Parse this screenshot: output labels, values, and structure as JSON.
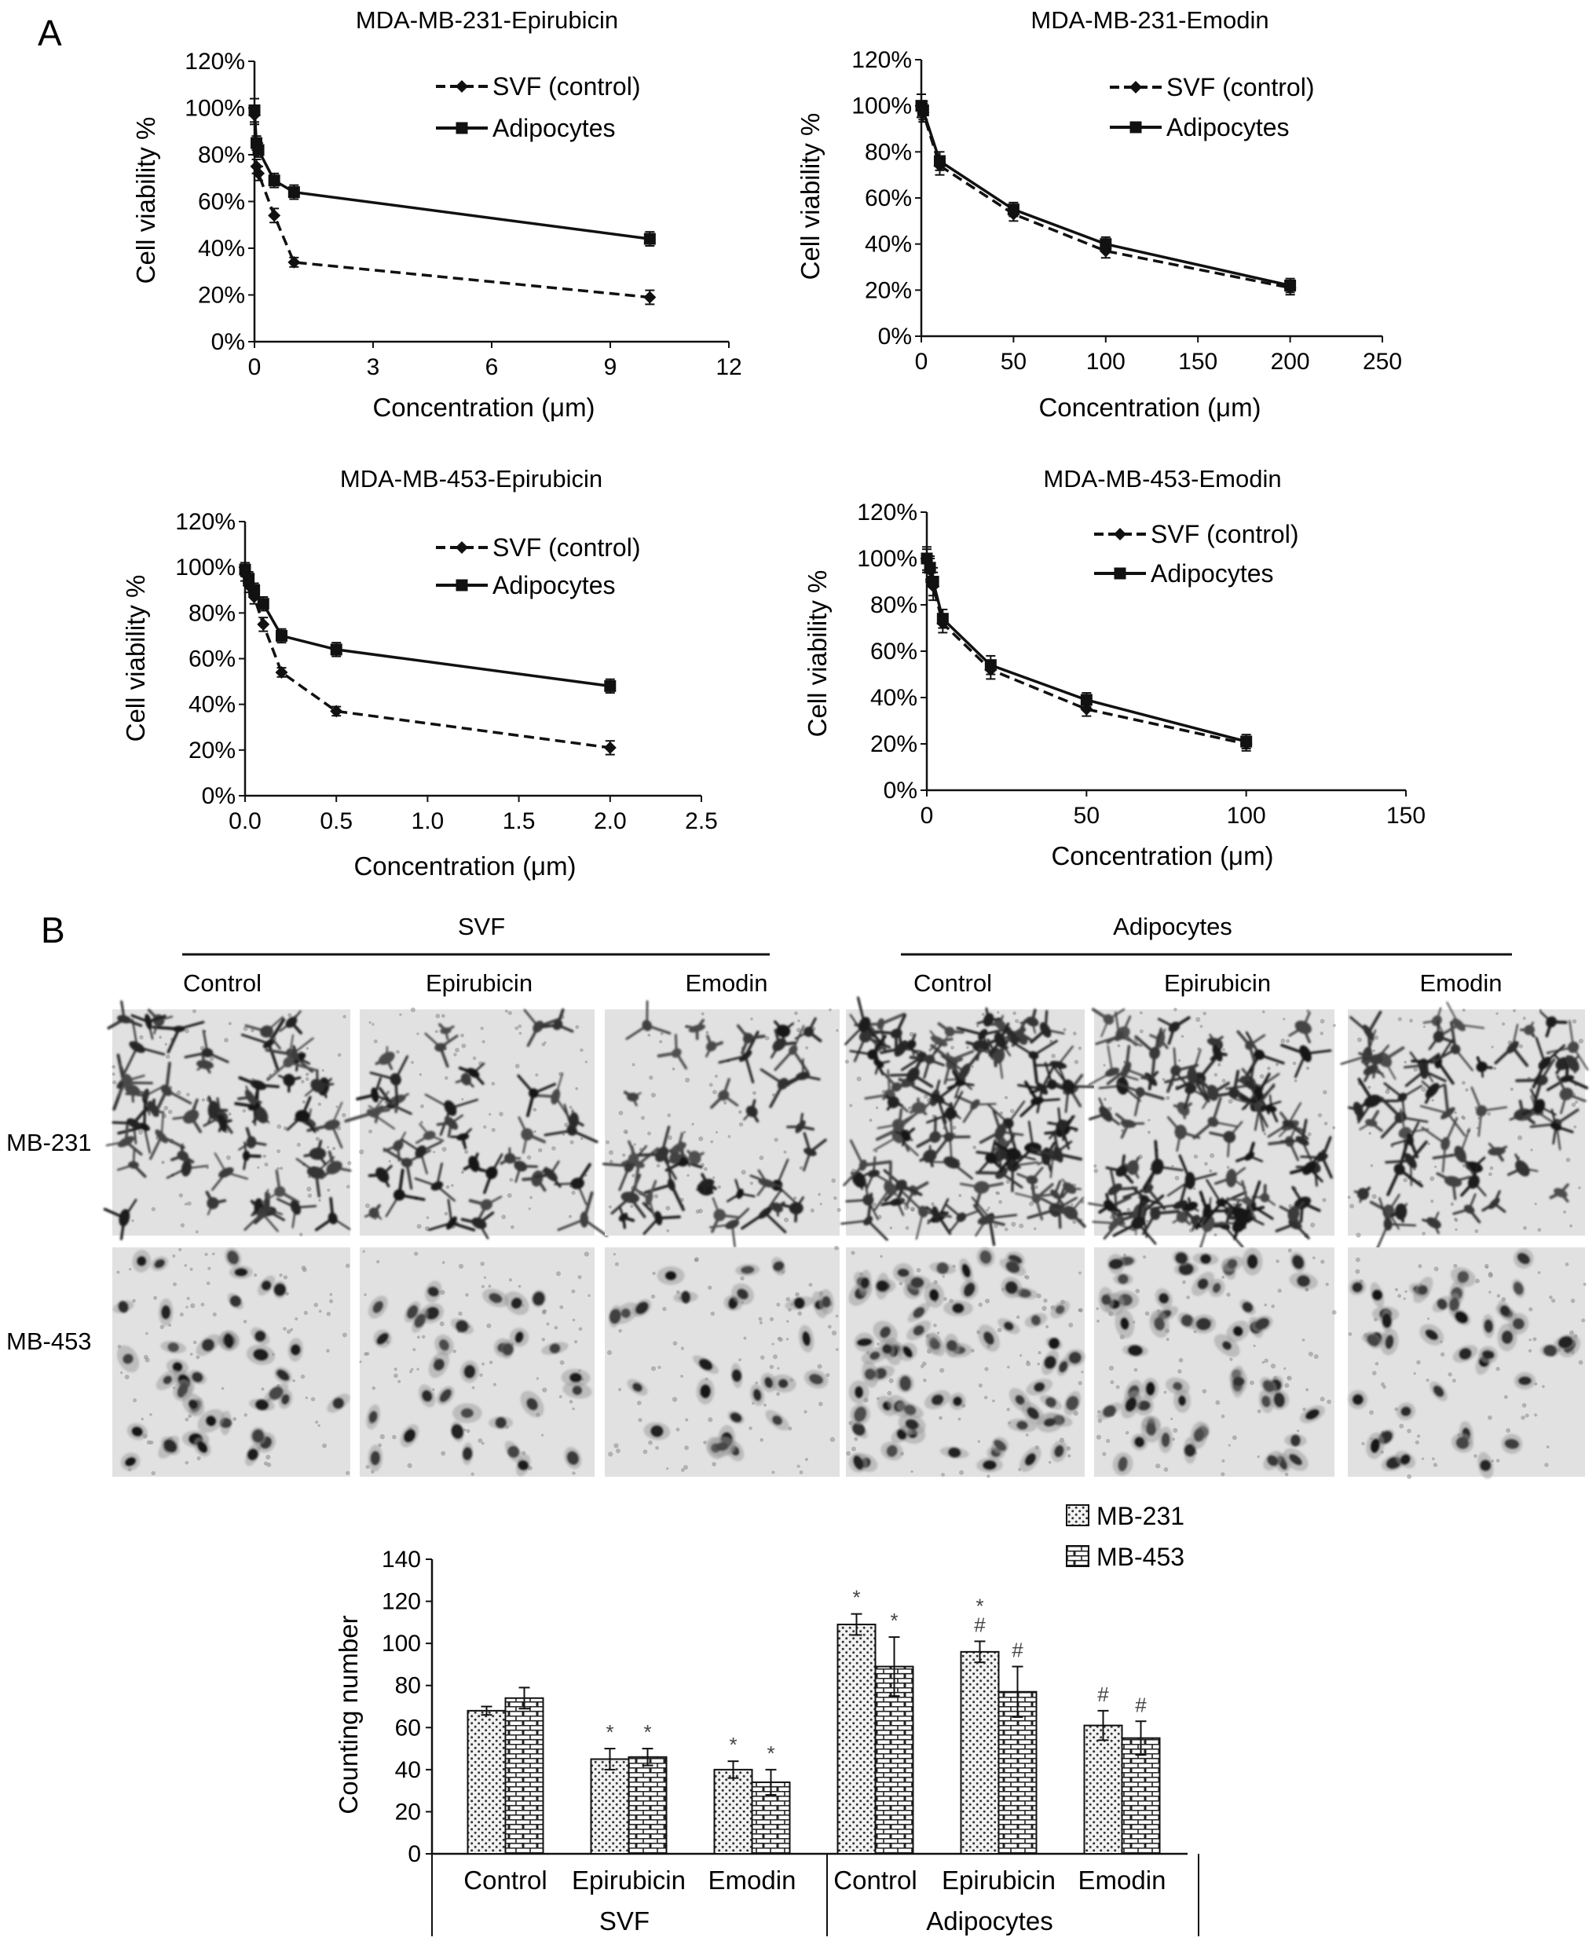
{
  "panel_labels": [
    "A",
    "B"
  ],
  "panel_b": {
    "groups": [
      "SVF",
      "Adipocytes"
    ],
    "column_labels": [
      "Control",
      "Epirubicin",
      "Emodin",
      "Control",
      "Epirubicin",
      "Emodin"
    ],
    "row_labels": [
      "MB-231",
      "MB-453"
    ]
  },
  "chart_data": [
    {
      "type": "line",
      "title": "MDA-MB-231-Epirubicin",
      "xlabel": "Concentration (μm)",
      "ylabel": "Cell viability %",
      "xlim": [
        0,
        12
      ],
      "xticks": [
        "0",
        "3",
        "6",
        "9",
        "12"
      ],
      "ylim": [
        0,
        120
      ],
      "yticks": [
        "0%",
        "20%",
        "40%",
        "60%",
        "80%",
        "100%",
        "120%"
      ],
      "legend_position": "top-right",
      "series": [
        {
          "name": "SVF (control)",
          "style": "dashed",
          "marker": "diamond",
          "x": [
            0,
            0.05,
            0.1,
            0.5,
            1,
            10
          ],
          "y": [
            97,
            75,
            72,
            54,
            34,
            19
          ],
          "err": [
            4,
            3,
            3,
            3,
            2,
            3
          ]
        },
        {
          "name": "Adipocytes",
          "style": "solid",
          "marker": "square",
          "x": [
            0,
            0.05,
            0.1,
            0.5,
            1,
            10
          ],
          "y": [
            99,
            85,
            82,
            69,
            64,
            44
          ],
          "err": [
            5,
            3,
            3,
            3,
            3,
            3
          ]
        }
      ]
    },
    {
      "type": "line",
      "title": "MDA-MB-231-Emodin",
      "xlabel": "Concentration (μm)",
      "ylabel": "Cell viability %",
      "xlim": [
        0,
        250
      ],
      "xticks": [
        "0",
        "50",
        "100",
        "150",
        "200",
        "250"
      ],
      "ylim": [
        0,
        120
      ],
      "yticks": [
        "0%",
        "20%",
        "40%",
        "60%",
        "80%",
        "100%",
        "120%"
      ],
      "legend_position": "top-right",
      "series": [
        {
          "name": "SVF (control)",
          "style": "dashed",
          "marker": "diamond",
          "x": [
            0,
            1,
            10,
            50,
            100,
            200
          ],
          "y": [
            100,
            97,
            74,
            53,
            37,
            21
          ],
          "err": [
            5,
            4,
            4,
            3,
            3,
            3
          ]
        },
        {
          "name": "Adipocytes",
          "style": "solid",
          "marker": "square",
          "x": [
            0,
            1,
            10,
            50,
            100,
            200
          ],
          "y": [
            100,
            98,
            76,
            55,
            40,
            22
          ],
          "err": [
            5,
            4,
            4,
            3,
            3,
            3
          ]
        }
      ]
    },
    {
      "type": "line",
      "title": "MDA-MB-453-Epirubicin",
      "xlabel": "Concentration (μm)",
      "ylabel": "Cell viability %",
      "xlim": [
        0,
        2.5
      ],
      "xticks": [
        "0.0",
        "0.5",
        "1.0",
        "1.5",
        "2.0",
        "2.5"
      ],
      "ylim": [
        0,
        120
      ],
      "yticks": [
        "0%",
        "20%",
        "40%",
        "60%",
        "80%",
        "100%",
        "120%"
      ],
      "legend_position": "top-right",
      "series": [
        {
          "name": "SVF (control)",
          "style": "dashed",
          "marker": "diamond",
          "x": [
            0,
            0.02,
            0.05,
            0.1,
            0.2,
            0.5,
            2
          ],
          "y": [
            97,
            92,
            87,
            75,
            54,
            37,
            21
          ],
          "err": [
            3,
            3,
            3,
            3,
            2,
            2,
            3
          ]
        },
        {
          "name": "Adipocytes",
          "style": "solid",
          "marker": "square",
          "x": [
            0,
            0.02,
            0.05,
            0.1,
            0.2,
            0.5,
            2
          ],
          "y": [
            99,
            95,
            90,
            84,
            70,
            64,
            48
          ],
          "err": [
            3,
            3,
            3,
            3,
            3,
            3,
            3
          ]
        }
      ]
    },
    {
      "type": "line",
      "title": "MDA-MB-453-Emodin",
      "xlabel": "Concentration (μm)",
      "ylabel": "Cell viability %",
      "xlim": [
        0,
        150
      ],
      "xticks": [
        "0",
        "50",
        "100",
        "150"
      ],
      "ylim": [
        0,
        120
      ],
      "yticks": [
        "0%",
        "20%",
        "40%",
        "60%",
        "80%",
        "100%",
        "120%"
      ],
      "legend_position": "top-right",
      "series": [
        {
          "name": "SVF (control)",
          "style": "dashed",
          "marker": "diamond",
          "x": [
            0,
            1,
            2,
            5,
            20,
            50,
            100
          ],
          "y": [
            99,
            95,
            88,
            72,
            52,
            35,
            20
          ],
          "err": [
            5,
            5,
            6,
            4,
            4,
            3,
            3
          ]
        },
        {
          "name": "Adipocytes",
          "style": "solid",
          "marker": "square",
          "x": [
            0,
            1,
            2,
            5,
            20,
            50,
            100
          ],
          "y": [
            100,
            96,
            90,
            74,
            54,
            39,
            21
          ],
          "err": [
            5,
            5,
            6,
            4,
            4,
            3,
            3
          ]
        }
      ]
    },
    {
      "type": "bar",
      "title": "",
      "xlabel": "",
      "ylabel": "Counting number",
      "ylim": [
        0,
        140
      ],
      "yticks": [
        "0",
        "20",
        "40",
        "60",
        "80",
        "100",
        "120",
        "140"
      ],
      "categories": [
        "Control",
        "Epirubicin",
        "Emodin",
        "Control",
        "Epirubicin",
        "Emodin"
      ],
      "groups": [
        "SVF",
        "Adipocytes"
      ],
      "legend_position": "top-right",
      "series": [
        {
          "name": "MB-231",
          "pattern": "dots",
          "values": [
            68,
            45,
            40,
            109,
            96,
            61
          ],
          "err": [
            2,
            5,
            4,
            5,
            5,
            7
          ],
          "marks": [
            "",
            "*",
            "*",
            "*",
            "*\n#",
            "#"
          ]
        },
        {
          "name": "MB-453",
          "pattern": "bricks",
          "values": [
            74,
            46,
            34,
            89,
            77,
            55
          ],
          "err": [
            5,
            4,
            6,
            14,
            12,
            8
          ],
          "marks": [
            "",
            "*",
            "*",
            "*",
            "#",
            "#"
          ]
        }
      ]
    }
  ]
}
